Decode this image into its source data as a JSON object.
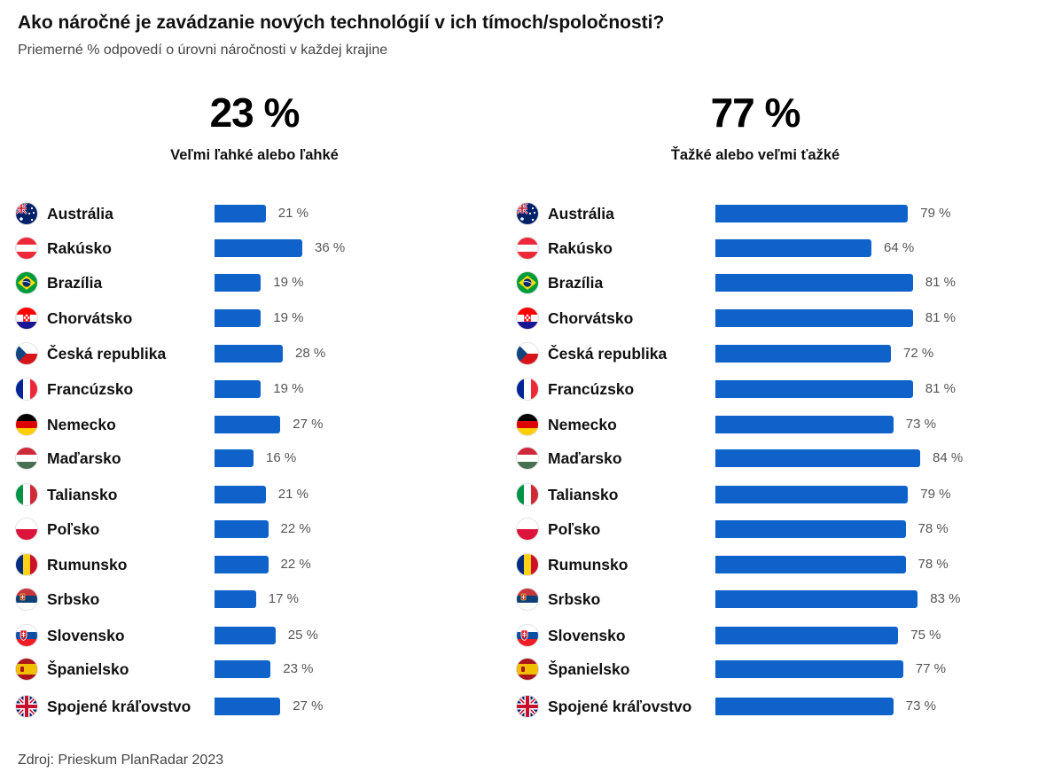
{
  "title": "Ako náročné je zavádzanie nových technológií v ich tímoch/spoločnosti?",
  "subtitle": "Priemerné % odpovedí o úrovni náročnosti v každej krajine",
  "source": "Zdroj: Prieskum PlanRadar 2023",
  "colors": {
    "bar": "#0f62c9",
    "text": "#111111",
    "muted": "#444444"
  },
  "chart_data": [
    {
      "type": "bar",
      "orientation": "horizontal",
      "headline_value": "23 %",
      "headline_label": "Veľmi ľahké alebo ľahké",
      "unit": "%",
      "categories": [
        "Austrália",
        "Rakúsko",
        "Brazília",
        "Chorvátsko",
        "Česká republika",
        "Francúzsko",
        "Nemecko",
        "Maďarsko",
        "Taliansko",
        "Poľsko",
        "Rumunsko",
        "Srbsko",
        "Slovensko",
        "Španielsko",
        "Spojené kráľovstvo"
      ],
      "values": [
        21,
        36,
        19,
        19,
        28,
        19,
        27,
        16,
        21,
        22,
        22,
        17,
        25,
        23,
        27
      ],
      "value_labels": [
        "21 %",
        "36 %",
        "19 %",
        "19 %",
        "28 %",
        "19 %",
        "27 %",
        "16 %",
        "21 %",
        "22 %",
        "22 %",
        "17 %",
        "25 %",
        "23 %",
        "27 %"
      ],
      "flags": [
        "australia-flag-icon",
        "austria-flag-icon",
        "brazil-flag-icon",
        "croatia-flag-icon",
        "czech-flag-icon",
        "france-flag-icon",
        "germany-flag-icon",
        "hungary-flag-icon",
        "italy-flag-icon",
        "poland-flag-icon",
        "romania-flag-icon",
        "serbia-flag-icon",
        "slovakia-flag-icon",
        "spain-flag-icon",
        "uk-flag-icon"
      ]
    },
    {
      "type": "bar",
      "orientation": "horizontal",
      "headline_value": "77 %",
      "headline_label": "Ťažké alebo veľmi ťažké",
      "unit": "%",
      "categories": [
        "Austrália",
        "Rakúsko",
        "Brazília",
        "Chorvátsko",
        "Česká republika",
        "Francúzsko",
        "Nemecko",
        "Maďarsko",
        "Taliansko",
        "Poľsko",
        "Rumunsko",
        "Srbsko",
        "Slovensko",
        "Španielsko",
        "Spojené kráľovstvo"
      ],
      "values": [
        79,
        64,
        81,
        81,
        72,
        81,
        73,
        84,
        79,
        78,
        78,
        83,
        75,
        77,
        73
      ],
      "value_labels": [
        "79 %",
        "64 %",
        "81 %",
        "81 %",
        "72 %",
        "81 %",
        "73 %",
        "84 %",
        "79 %",
        "78 %",
        "78 %",
        "83 %",
        "75 %",
        "77 %",
        "73 %"
      ],
      "flags": [
        "australia-flag-icon",
        "austria-flag-icon",
        "brazil-flag-icon",
        "croatia-flag-icon",
        "czech-flag-icon",
        "france-flag-icon",
        "germany-flag-icon",
        "hungary-flag-icon",
        "italy-flag-icon",
        "poland-flag-icon",
        "romania-flag-icon",
        "serbia-flag-icon",
        "slovakia-flag-icon",
        "spain-flag-icon",
        "uk-flag-icon"
      ]
    }
  ]
}
